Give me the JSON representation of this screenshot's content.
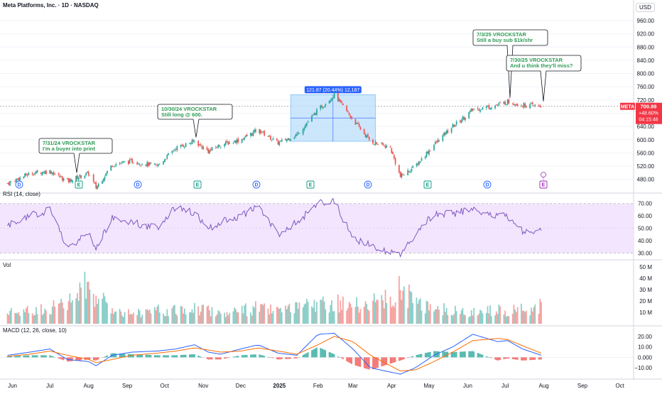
{
  "header": {
    "title": "Meta Platforms, Inc. · 1D · NASDAQ",
    "currency": "USD"
  },
  "colors": {
    "up": "#26a69a",
    "down": "#ef5350",
    "macd_line": "#2962ff",
    "signal_line": "#ff6d00",
    "rsi_line": "#7e57c2",
    "rsi_band": "#f3e5fd",
    "annotation_text": "#2e9b55",
    "measure_fill": "#bbdefb",
    "price_tag": "#f23645"
  },
  "price_axis": {
    "ticks": [
      "960.00",
      "920.00",
      "880.00",
      "840.00",
      "800.00",
      "760.00",
      "720.00",
      "680.00",
      "640.00",
      "600.00",
      "560.00",
      "520.00",
      "480.00"
    ],
    "ticks_value": [
      960,
      920,
      880,
      840,
      800,
      760,
      720,
      680,
      640,
      600,
      560,
      520,
      480
    ],
    "symbol_tag": "META",
    "last_price": "700.89",
    "change_pct": "+48.60%",
    "countdown": "04:15:46"
  },
  "rsi": {
    "label": "RSI (14, close)",
    "ticks": [
      "70.00",
      "60.00",
      "50.00",
      "40.00",
      "30.00"
    ],
    "ticks_value": [
      70,
      60,
      50,
      40,
      30
    ]
  },
  "volume": {
    "label": "Vol",
    "ticks": [
      "50 M",
      "40 M",
      "30 M",
      "20 M",
      "10 M"
    ],
    "ticks_value": [
      50,
      40,
      30,
      20,
      10
    ]
  },
  "macd": {
    "label": "MACD (12, 26, close, 10)",
    "ticks": [
      "20.00",
      "10.00",
      "0.000",
      "−10.00"
    ],
    "ticks_value": [
      20,
      10,
      0,
      -10
    ]
  },
  "x_axis": {
    "labels": [
      "Jun",
      "Jul",
      "Aug",
      "Sep",
      "Oct",
      "Nov",
      "Dec",
      "2025",
      "Feb",
      "Mar",
      "Apr",
      "May",
      "Jun",
      "Jul",
      "Aug",
      "Sep",
      "Oct"
    ]
  },
  "annotations": [
    {
      "line1": "7/31/24 VROCKSTAR",
      "line2": "I'm a buyer into print"
    },
    {
      "line1": "10/30/24 VROCKSTAR",
      "line2": "Still long @ 600."
    },
    {
      "line1": "7/3/25 VROCKSTAR",
      "line2": "Still a buy sub $1k/shr"
    },
    {
      "line1": "7/30/25 VROCKSTAR",
      "line2": "And u think they'll miss?"
    }
  ],
  "measure_label": "121.87 (20.44%) 12,187",
  "event_badges": [
    "D",
    "E",
    "D",
    "E",
    "D",
    "E",
    "D",
    "E",
    "D",
    "E",
    "E"
  ],
  "chart_data": {
    "type": "candlestick",
    "title": "Meta Platforms, Inc. · 1D · NASDAQ",
    "x": [
      "2024-05-28",
      "2024-06-15",
      "2024-07-01",
      "2024-07-15",
      "2024-08-01",
      "2024-08-07",
      "2024-08-20",
      "2024-09-05",
      "2024-09-25",
      "2024-10-10",
      "2024-10-25",
      "2024-11-05",
      "2024-11-15",
      "2024-12-01",
      "2024-12-15",
      "2024-12-31",
      "2025-01-15",
      "2025-02-01",
      "2025-02-14",
      "2025-03-01",
      "2025-03-15",
      "2025-03-31",
      "2025-04-08",
      "2025-04-20",
      "2025-05-05",
      "2025-05-20",
      "2025-06-05",
      "2025-06-25",
      "2025-07-03",
      "2025-07-15",
      "2025-07-30"
    ],
    "series": [
      {
        "name": "META",
        "values": [
          468,
          498,
          505,
          475,
          498,
          455,
          525,
          535,
          520,
          575,
          595,
          565,
          585,
          600,
          630,
          590,
          615,
          690,
          736,
          660,
          595,
          575,
          488,
          520,
          585,
          640,
          690,
          705,
          715,
          705,
          700.89
        ]
      }
    ],
    "volume": [
      10,
      12,
      15,
      18,
      38,
      25,
      14,
      10,
      12,
      12,
      15,
      13,
      10,
      12,
      15,
      11,
      14,
      18,
      20,
      16,
      20,
      22,
      35,
      18,
      16,
      12,
      10,
      14,
      12,
      13,
      16
    ],
    "rsi": [
      52,
      60,
      65,
      35,
      45,
      35,
      58,
      55,
      50,
      68,
      62,
      50,
      55,
      60,
      68,
      45,
      55,
      70,
      72,
      42,
      36,
      30,
      30,
      45,
      62,
      62,
      65,
      60,
      60,
      48,
      48
    ],
    "macd": [
      2,
      5,
      8,
      -2,
      -4,
      -8,
      2,
      5,
      6,
      8,
      12,
      5,
      3,
      8,
      12,
      4,
      2,
      22,
      23,
      8,
      -10,
      -14,
      -16,
      -10,
      2,
      10,
      22,
      15,
      16,
      8,
      2
    ],
    "signal": [
      1,
      3,
      6,
      2,
      -2,
      -5,
      -2,
      2,
      4,
      6,
      9,
      7,
      5,
      6,
      9,
      6,
      3,
      12,
      20,
      15,
      2,
      -8,
      -13,
      -12,
      -4,
      5,
      16,
      18,
      17,
      11,
      4
    ],
    "ylim": [
      460,
      990
    ],
    "rsi_ylim": [
      28,
      75
    ],
    "vol_ylim": [
      0,
      55
    ],
    "macd_ylim": [
      -18,
      28
    ]
  }
}
